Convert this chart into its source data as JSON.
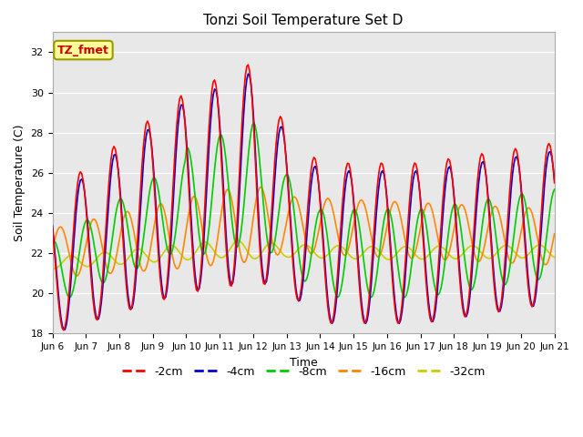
{
  "title": "Tonzi Soil Temperature Set D",
  "xlabel": "Time",
  "ylabel": "Soil Temperature (C)",
  "annotation": "TZ_fmet",
  "ylim": [
    18,
    33
  ],
  "xlim_days": [
    0,
    15
  ],
  "yticks": [
    18,
    20,
    22,
    24,
    26,
    28,
    30,
    32
  ],
  "xtick_labels": [
    "Jun 6",
    "Jun 7",
    "Jun 8",
    "Jun 9",
    "Jun 10",
    "Jun 11",
    "Jun 12",
    "Jun 13",
    "Jun 14",
    "Jun 15",
    "Jun 16",
    "Jun 17",
    "Jun 18",
    "Jun 19",
    "Jun 20",
    "Jun 21"
  ],
  "series": {
    "-2cm": {
      "color": "#ff0000",
      "lw": 1.2
    },
    "-4cm": {
      "color": "#0000cc",
      "lw": 1.2
    },
    "-8cm": {
      "color": "#00cc00",
      "lw": 1.2
    },
    "-16cm": {
      "color": "#ff8800",
      "lw": 1.2
    },
    "-32cm": {
      "color": "#cccc00",
      "lw": 1.2
    }
  },
  "plot_bg_color": "#e8e8e8",
  "grid_color": "#ffffff",
  "annotation_bg": "#ffff99",
  "annotation_border": "#999900",
  "annotation_text_color": "#cc0000"
}
